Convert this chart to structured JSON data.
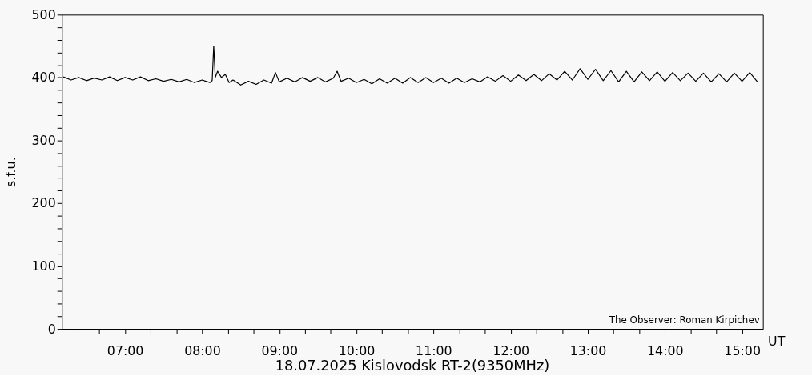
{
  "chart_data": {
    "type": "line",
    "title": "18.07.2025 Kislovodsk RT-2(9350MHz)",
    "xlabel": "UT",
    "ylabel": "s.f.u.",
    "annotations": [
      "The Observer: Roman Kirpichev"
    ],
    "x": [
      6.2,
      6.3,
      6.4,
      6.5,
      6.6,
      6.7,
      6.8,
      6.9,
      7.0,
      7.1,
      7.2,
      7.3,
      7.4,
      7.5,
      7.6,
      7.7,
      7.8,
      7.9,
      8.0,
      8.1,
      8.13,
      8.15,
      8.17,
      8.2,
      8.25,
      8.3,
      8.35,
      8.4,
      8.5,
      8.6,
      8.7,
      8.8,
      8.9,
      8.95,
      9.0,
      9.1,
      9.2,
      9.3,
      9.4,
      9.5,
      9.6,
      9.7,
      9.75,
      9.8,
      9.9,
      10.0,
      10.1,
      10.2,
      10.3,
      10.4,
      10.5,
      10.6,
      10.7,
      10.8,
      10.9,
      11.0,
      11.1,
      11.2,
      11.3,
      11.4,
      11.5,
      11.6,
      11.7,
      11.8,
      11.9,
      12.0,
      12.1,
      12.2,
      12.3,
      12.4,
      12.5,
      12.6,
      12.7,
      12.8,
      12.9,
      13.0,
      13.1,
      13.2,
      13.3,
      13.4,
      13.5,
      13.6,
      13.7,
      13.8,
      13.9,
      14.0,
      14.1,
      14.2,
      14.3,
      14.4,
      14.5,
      14.6,
      14.7,
      14.8,
      14.9,
      15.0,
      15.1,
      15.2
    ],
    "series": [
      {
        "color": "#000000",
        "values": [
          401,
          396,
          400,
          395,
          399,
          396,
          401,
          395,
          400,
          396,
          401,
          395,
          398,
          394,
          397,
          393,
          397,
          392,
          396,
          392,
          395,
          450,
          400,
          410,
          400,
          405,
          392,
          396,
          388,
          394,
          389,
          396,
          391,
          408,
          393,
          399,
          393,
          400,
          394,
          400,
          393,
          399,
          410,
          394,
          399,
          392,
          397,
          390,
          398,
          391,
          399,
          391,
          400,
          392,
          400,
          392,
          399,
          391,
          399,
          392,
          398,
          393,
          401,
          394,
          403,
          394,
          404,
          395,
          405,
          395,
          406,
          396,
          410,
          396,
          414,
          397,
          413,
          395,
          411,
          393,
          410,
          393,
          409,
          395,
          409,
          394,
          408,
          395,
          407,
          394,
          407,
          393,
          406,
          393,
          407,
          394,
          408,
          393
        ]
      }
    ],
    "xlim": [
      6.18,
      15.27
    ],
    "xticks": [
      {
        "value": 6.3333,
        "label": null
      },
      {
        "value": 6.6667,
        "label": null
      },
      {
        "value": 7,
        "label": "07:00"
      },
      {
        "value": 7.3333,
        "label": null
      },
      {
        "value": 7.6667,
        "label": null
      },
      {
        "value": 8,
        "label": "08:00"
      },
      {
        "value": 8.3333,
        "label": null
      },
      {
        "value": 8.6667,
        "label": null
      },
      {
        "value": 9,
        "label": "09:00"
      },
      {
        "value": 9.3333,
        "label": null
      },
      {
        "value": 9.6667,
        "label": null
      },
      {
        "value": 10,
        "label": "10:00"
      },
      {
        "value": 10.3333,
        "label": null
      },
      {
        "value": 10.6667,
        "label": null
      },
      {
        "value": 11,
        "label": "11:00"
      },
      {
        "value": 11.3333,
        "label": null
      },
      {
        "value": 11.6667,
        "label": null
      },
      {
        "value": 12,
        "label": "12:00"
      },
      {
        "value": 12.3333,
        "label": null
      },
      {
        "value": 12.6667,
        "label": null
      },
      {
        "value": 13,
        "label": "13:00"
      },
      {
        "value": 13.3333,
        "label": null
      },
      {
        "value": 13.6667,
        "label": null
      },
      {
        "value": 14,
        "label": "14:00"
      },
      {
        "value": 14.3333,
        "label": null
      },
      {
        "value": 14.6667,
        "label": null
      },
      {
        "value": 15,
        "label": "15:00"
      }
    ],
    "ylim": [
      0,
      500
    ],
    "yticks": [
      0,
      {
        "value": 20,
        "label": null
      },
      {
        "value": 40,
        "label": null
      },
      {
        "value": 60,
        "label": null
      },
      {
        "value": 80,
        "label": null
      },
      100,
      {
        "value": 120,
        "label": null
      },
      {
        "value": 140,
        "label": null
      },
      {
        "value": 160,
        "label": null
      },
      {
        "value": 180,
        "label": null
      },
      200,
      {
        "value": 220,
        "label": null
      },
      {
        "value": 240,
        "label": null
      },
      {
        "value": 260,
        "label": null
      },
      {
        "value": 280,
        "label": null
      },
      300,
      {
        "value": 320,
        "label": null
      },
      {
        "value": 340,
        "label": null
      },
      {
        "value": 360,
        "label": null
      },
      {
        "value": 380,
        "label": null
      },
      400,
      {
        "value": 420,
        "label": null
      },
      {
        "value": 440,
        "label": null
      },
      {
        "value": 460,
        "label": null
      },
      {
        "value": 480,
        "label": null
      },
      500
    ],
    "grid": false,
    "marker": "none",
    "line_style": "solid"
  }
}
